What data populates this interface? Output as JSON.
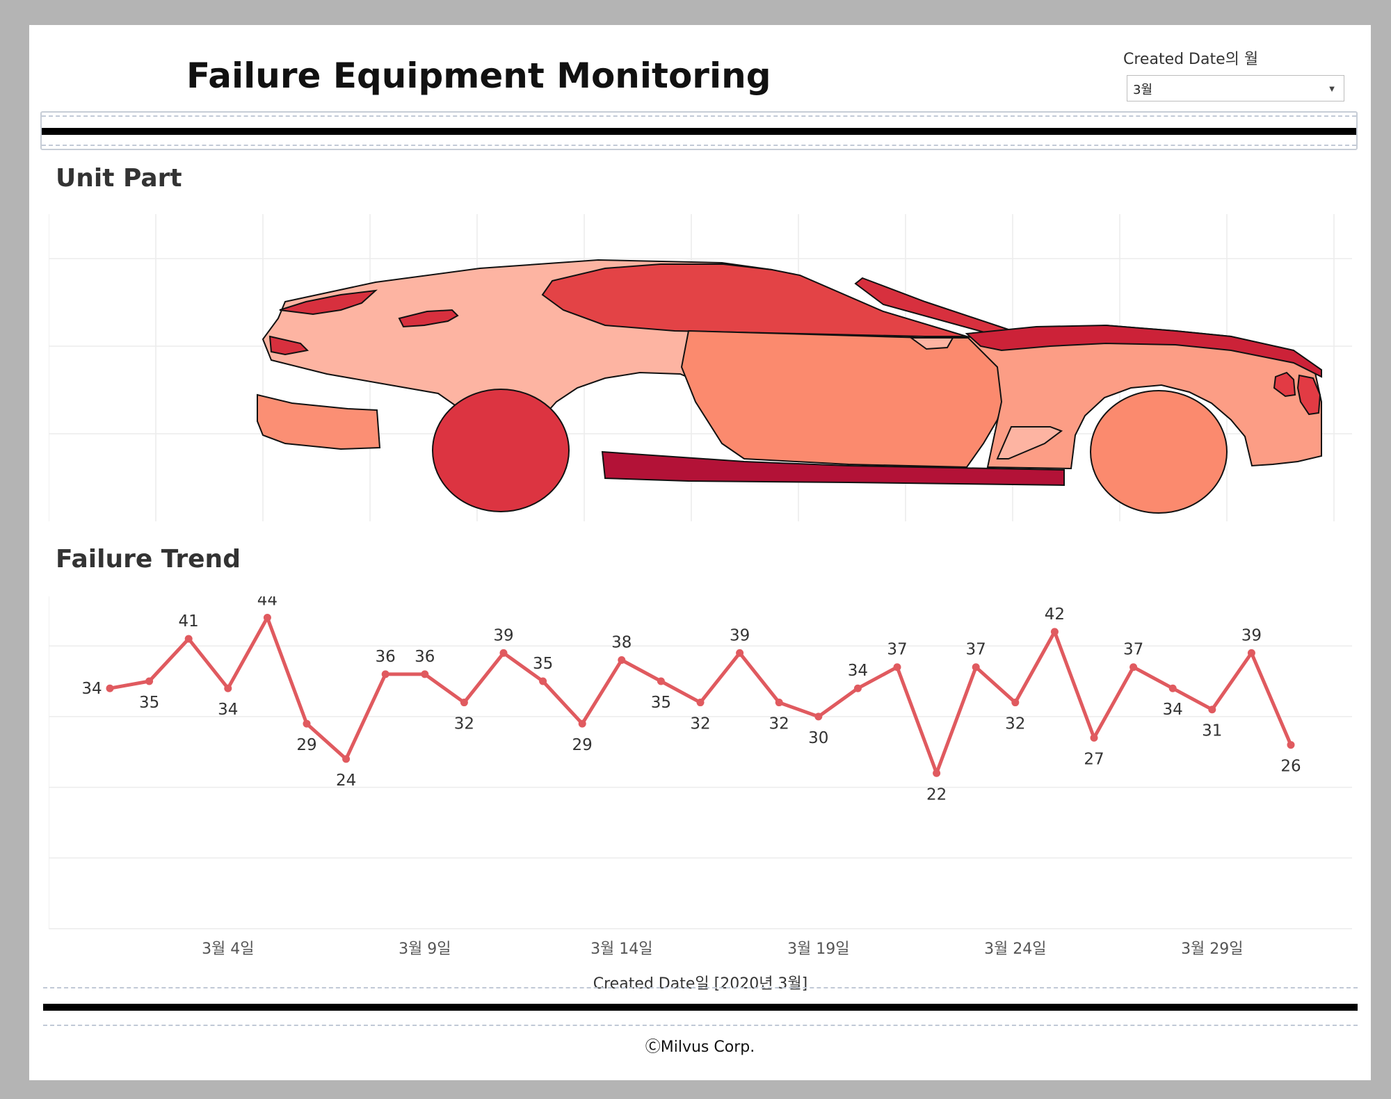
{
  "header": {
    "title": "Failure Equipment Monitoring",
    "filter_label": "Created Date의 월",
    "filter_value": "3월"
  },
  "sections": {
    "unit_part_title": "Unit Part",
    "failure_trend_title": "Failure Trend"
  },
  "unit_part": {
    "parts": [
      {
        "name": "rear-bumper",
        "color": "#fb8f74"
      },
      {
        "name": "rear-quarter",
        "color": "#fdb4a2"
      },
      {
        "name": "tail-light",
        "color": "#d7303e"
      },
      {
        "name": "rear-wheel",
        "color": "#dc3441"
      },
      {
        "name": "front-wheel",
        "color": "#fb8a6e"
      },
      {
        "name": "door",
        "color": "#fb8a6e"
      },
      {
        "name": "side-skirt",
        "color": "#b31237"
      },
      {
        "name": "window",
        "color": "#e34346"
      },
      {
        "name": "front-fender",
        "color": "#fc9d85"
      },
      {
        "name": "hood",
        "color": "#cc2238"
      },
      {
        "name": "headlight",
        "color": "#e23b44"
      }
    ]
  },
  "chart_data": {
    "type": "line",
    "x": [
      "2020-03-01",
      "2020-03-02",
      "2020-03-03",
      "2020-03-04",
      "2020-03-05",
      "2020-03-06",
      "2020-03-07",
      "2020-03-08",
      "2020-03-09",
      "2020-03-10",
      "2020-03-11",
      "2020-03-12",
      "2020-03-13",
      "2020-03-14",
      "2020-03-15",
      "2020-03-16",
      "2020-03-17",
      "2020-03-18",
      "2020-03-19",
      "2020-03-20",
      "2020-03-21",
      "2020-03-22",
      "2020-03-23",
      "2020-03-24",
      "2020-03-25",
      "2020-03-26",
      "2020-03-27",
      "2020-03-28",
      "2020-03-29",
      "2020-03-30",
      "2020-03-31"
    ],
    "values": [
      34,
      35,
      41,
      34,
      44,
      29,
      24,
      36,
      36,
      32,
      39,
      35,
      29,
      38,
      35,
      32,
      39,
      32,
      30,
      34,
      37,
      22,
      37,
      32,
      42,
      27,
      37,
      34,
      31,
      39,
      26
    ],
    "xlabel": "Created Date일 [2020년 3월]",
    "ylabel": "",
    "xticks": [
      {
        "date": "2020-03-04",
        "label": "3월 4일"
      },
      {
        "date": "2020-03-09",
        "label": "3월 9일"
      },
      {
        "date": "2020-03-14",
        "label": "3월 14일"
      },
      {
        "date": "2020-03-19",
        "label": "3월 19일"
      },
      {
        "date": "2020-03-24",
        "label": "3월 24일"
      },
      {
        "date": "2020-03-29",
        "label": "3월 29일"
      }
    ],
    "ylim": [
      0,
      47
    ],
    "line_color": "#e05a5f",
    "grid": true
  },
  "footer": {
    "copyright": "ⒸMilvus Corp."
  }
}
